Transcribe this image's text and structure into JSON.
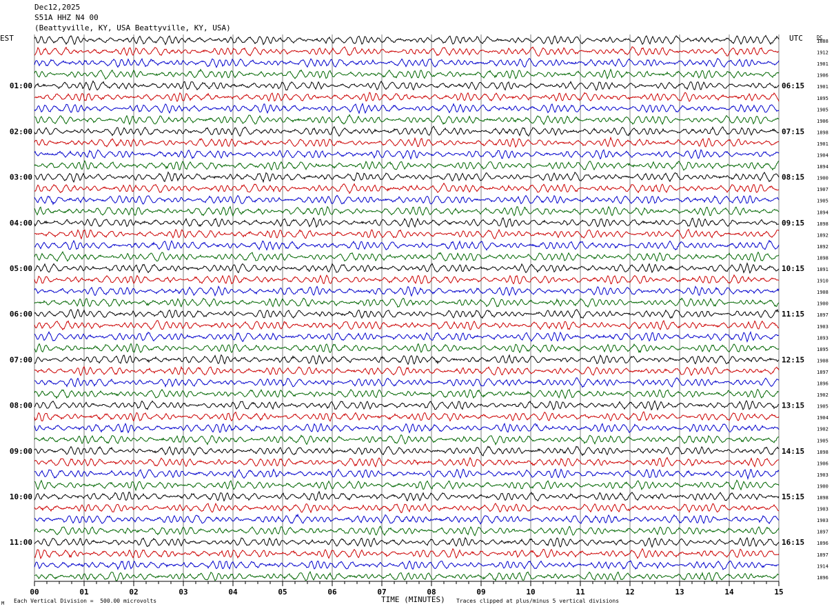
{
  "header": {
    "date": "Dec12,2025",
    "station": "S51A HHZ N4 00",
    "location": "(Beattyville, KY, USA Beattyville, KY, USA)"
  },
  "left_axis_label": "EST",
  "right_axis_label": "UTC",
  "dc_label": "DC",
  "footer": {
    "scale_note": "Each Vertical Division =  500.00 microvolts",
    "xlabel": "TIME (MINUTES)",
    "clip_note": "Traces clipped at plus/minus 5 vertical divisions",
    "corner_mark": "M"
  },
  "colors": {
    "trace_cycle": [
      "#000000",
      "#cc0000",
      "#0000cc",
      "#006600"
    ],
    "grid": "#000000"
  },
  "chart_data": {
    "type": "line",
    "title": "",
    "xlabel": "TIME (MINUTES)",
    "ylabel": "",
    "xlim": [
      0,
      15
    ],
    "x_ticks": [
      "00",
      "01",
      "02",
      "03",
      "04",
      "05",
      "06",
      "07",
      "08",
      "09",
      "10",
      "11",
      "12",
      "13",
      "14",
      "15"
    ],
    "trace_count": 48,
    "hour_labels_est": [
      "01:00",
      "02:00",
      "03:00",
      "04:00",
      "05:00",
      "06:00",
      "07:00",
      "08:00",
      "09:00",
      "10:00",
      "11:00"
    ],
    "hour_labels_utc": [
      "06:15",
      "07:15",
      "08:15",
      "09:15",
      "10:15",
      "11:15",
      "12:15",
      "13:15",
      "14:15",
      "15:15",
      "16:15"
    ],
    "dc_offsets": [
      "1888",
      "1912",
      "1901",
      "1906",
      "1901",
      "1895",
      "1905",
      "1906",
      "1898",
      "1901",
      "1904",
      "1894",
      "1900",
      "1907",
      "1905",
      "1894",
      "1898",
      "1892",
      "1892",
      "1898",
      "1891",
      "1910",
      "1908",
      "1900",
      "1897",
      "1903",
      "1893",
      "1895",
      "1908",
      "1897",
      "1896",
      "1902",
      "1905",
      "1904",
      "1902",
      "1905",
      "1898",
      "1906",
      "1903",
      "1900",
      "1898",
      "1903",
      "1903",
      "1897",
      "1896",
      "1897",
      "1914",
      "1896"
    ]
  }
}
